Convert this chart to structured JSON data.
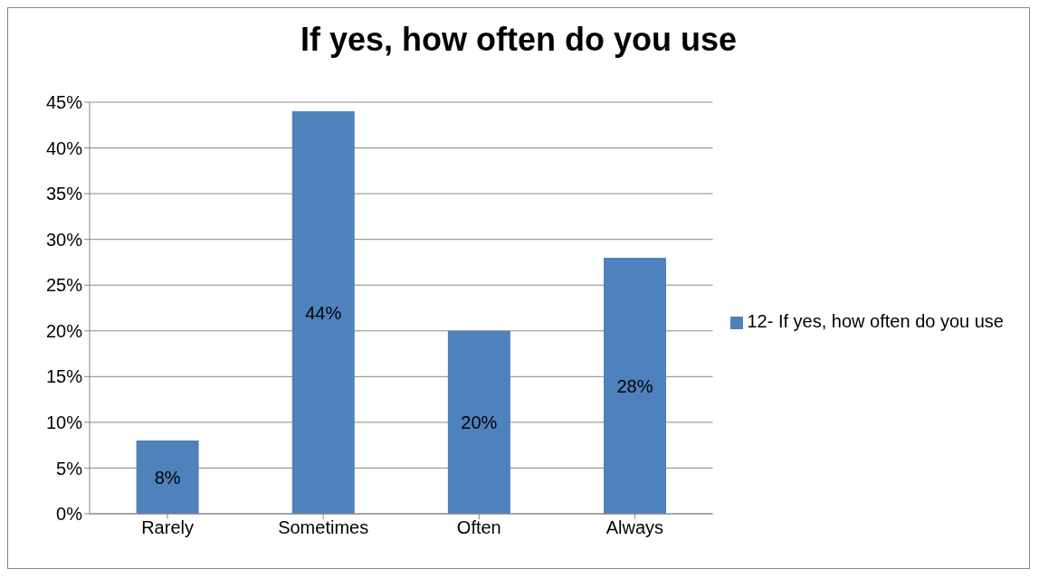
{
  "chart_data": {
    "type": "bar",
    "title": "If yes, how often do you use",
    "categories": [
      "Rarely",
      "Sometimes",
      "Often",
      "Always"
    ],
    "series": [
      {
        "name": "12- If yes, how often do you use",
        "color": "#4f81bd",
        "values": [
          8,
          44,
          20,
          28
        ],
        "value_labels": [
          "8%",
          "44%",
          "20%",
          "28%"
        ]
      }
    ],
    "ylim": [
      0,
      45
    ],
    "yticks": [
      {
        "value": 0,
        "label": "0%"
      },
      {
        "value": 5,
        "label": "5%"
      },
      {
        "value": 10,
        "label": "10%"
      },
      {
        "value": 15,
        "label": "15%"
      },
      {
        "value": 20,
        "label": "20%"
      },
      {
        "value": 25,
        "label": "25%"
      },
      {
        "value": 30,
        "label": "30%"
      },
      {
        "value": 35,
        "label": "35%"
      },
      {
        "value": 40,
        "label": "40%"
      },
      {
        "value": 45,
        "label": "45%"
      }
    ],
    "grid": "y",
    "legend": "right"
  }
}
